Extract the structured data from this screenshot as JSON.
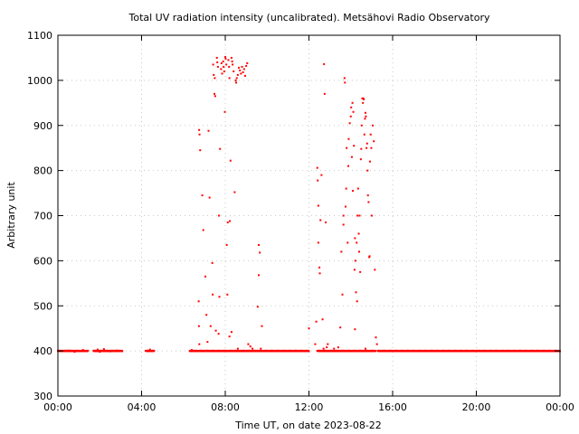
{
  "chart_data": {
    "type": "scatter",
    "title": "Total UV radiation intensity (uncalibrated). Metsähovi Radio Observatory",
    "xlabel": "Time UT, on date 2023-08-22",
    "ylabel": "Arbitrary unit",
    "x_unit": "hours UT",
    "xlim": [
      0,
      24
    ],
    "ylim": [
      300,
      1100
    ],
    "x_ticks": [
      0,
      4,
      8,
      12,
      16,
      20,
      24
    ],
    "x_tick_labels": [
      "00:00",
      "04:00",
      "08:00",
      "12:00",
      "16:00",
      "20:00",
      "00:00"
    ],
    "y_ticks": [
      300,
      400,
      500,
      600,
      700,
      800,
      900,
      1000,
      1100
    ],
    "y_tick_labels": [
      "300",
      "400",
      "500",
      "600",
      "700",
      "800",
      "900",
      "1000",
      "1100"
    ],
    "grid": true,
    "marker_color": "#ff0000",
    "series": [
      {
        "baseline": {
          "value": 400,
          "segments": [
            [
              0.0,
              1.45
            ],
            [
              1.7,
              3.1
            ],
            [
              4.2,
              4.6
            ],
            [
              6.3,
              9.5
            ],
            [
              9.5,
              12.0
            ],
            [
              12.4,
              15.2
            ],
            [
              15.3,
              24.0
            ]
          ]
        },
        "points": [
          [
            0.5,
            401
          ],
          [
            0.8,
            398
          ],
          [
            1.2,
            402
          ],
          [
            1.9,
            403
          ],
          [
            2.0,
            398
          ],
          [
            2.2,
            404
          ],
          [
            2.5,
            399
          ],
          [
            2.8,
            401
          ],
          [
            4.4,
            403
          ],
          [
            6.4,
            402
          ],
          [
            6.75,
            890
          ],
          [
            6.77,
            880
          ],
          [
            6.8,
            845
          ],
          [
            6.73,
            510
          ],
          [
            6.74,
            455
          ],
          [
            6.76,
            415
          ],
          [
            6.9,
            745
          ],
          [
            6.95,
            668
          ],
          [
            7.05,
            565
          ],
          [
            7.1,
            480
          ],
          [
            7.15,
            420
          ],
          [
            7.2,
            888
          ],
          [
            7.25,
            740
          ],
          [
            7.3,
            455
          ],
          [
            7.35,
            400
          ],
          [
            7.38,
            595
          ],
          [
            7.4,
            525
          ],
          [
            7.42,
            1035
          ],
          [
            7.45,
            1012
          ],
          [
            7.48,
            970
          ],
          [
            7.5,
            1005
          ],
          [
            7.52,
            965
          ],
          [
            7.55,
            445
          ],
          [
            7.6,
            1050
          ],
          [
            7.62,
            1040
          ],
          [
            7.65,
            1030
          ],
          [
            7.68,
            438
          ],
          [
            7.7,
            700
          ],
          [
            7.72,
            520
          ],
          [
            7.75,
            848
          ],
          [
            7.8,
            1025
          ],
          [
            7.82,
            1038
          ],
          [
            7.85,
            1015
          ],
          [
            7.9,
            1042
          ],
          [
            7.92,
            1030
          ],
          [
            7.95,
            1020
          ],
          [
            7.98,
            930
          ],
          [
            8.0,
            1052
          ],
          [
            8.02,
            1048
          ],
          [
            8.05,
            1035
          ],
          [
            8.07,
            635
          ],
          [
            8.1,
            525
          ],
          [
            8.12,
            685
          ],
          [
            8.15,
            1045
          ],
          [
            8.18,
            1030
          ],
          [
            8.2,
            1005
          ],
          [
            8.22,
            688
          ],
          [
            8.25,
            822
          ],
          [
            8.3,
            1050
          ],
          [
            8.33,
            1042
          ],
          [
            8.35,
            1035
          ],
          [
            8.4,
            1020
          ],
          [
            8.45,
            752
          ],
          [
            8.5,
            1000
          ],
          [
            8.52,
            995
          ],
          [
            8.55,
            1005
          ],
          [
            8.6,
            1012
          ],
          [
            8.65,
            1028
          ],
          [
            8.7,
            1022
          ],
          [
            8.75,
            1015
          ],
          [
            8.8,
            1030
          ],
          [
            8.85,
            1018
          ],
          [
            8.9,
            1025
          ],
          [
            8.95,
            1010
          ],
          [
            9.0,
            1032
          ],
          [
            9.05,
            1038
          ],
          [
            8.3,
            442
          ],
          [
            8.2,
            432
          ],
          [
            8.6,
            405
          ],
          [
            9.1,
            415
          ],
          [
            9.2,
            410
          ],
          [
            9.3,
            405
          ],
          [
            9.6,
            635
          ],
          [
            9.65,
            618
          ],
          [
            9.6,
            568
          ],
          [
            9.55,
            498
          ],
          [
            9.75,
            455
          ],
          [
            9.7,
            405
          ],
          [
            12.0,
            450
          ],
          [
            12.3,
            415
          ],
          [
            12.35,
            465
          ],
          [
            12.4,
            806
          ],
          [
            12.42,
            778
          ],
          [
            12.45,
            722
          ],
          [
            12.45,
            640
          ],
          [
            12.5,
            585
          ],
          [
            12.52,
            572
          ],
          [
            12.55,
            690
          ],
          [
            12.6,
            790
          ],
          [
            12.65,
            470
          ],
          [
            12.7,
            405
          ],
          [
            12.72,
            1036
          ],
          [
            12.75,
            970
          ],
          [
            12.8,
            685
          ],
          [
            12.85,
            408
          ],
          [
            12.9,
            415
          ],
          [
            13.5,
            452
          ],
          [
            13.55,
            620
          ],
          [
            13.6,
            525
          ],
          [
            13.65,
            680
          ],
          [
            13.65,
            700
          ],
          [
            13.7,
            1005
          ],
          [
            13.72,
            995
          ],
          [
            13.75,
            720
          ],
          [
            13.78,
            760
          ],
          [
            13.8,
            850
          ],
          [
            13.85,
            640
          ],
          [
            13.88,
            810
          ],
          [
            13.9,
            870
          ],
          [
            13.95,
            905
          ],
          [
            14.0,
            920
          ],
          [
            14.02,
            940
          ],
          [
            14.05,
            830
          ],
          [
            14.08,
            950
          ],
          [
            14.1,
            755
          ],
          [
            14.12,
            930
          ],
          [
            14.15,
            855
          ],
          [
            14.18,
            580
          ],
          [
            14.2,
            650
          ],
          [
            14.22,
            600
          ],
          [
            14.25,
            530
          ],
          [
            14.28,
            640
          ],
          [
            14.3,
            510
          ],
          [
            14.32,
            700
          ],
          [
            14.35,
            760
          ],
          [
            14.38,
            660
          ],
          [
            14.4,
            620
          ],
          [
            14.42,
            700
          ],
          [
            14.45,
            575
          ],
          [
            14.48,
            825
          ],
          [
            14.5,
            848
          ],
          [
            14.52,
            900
          ],
          [
            14.55,
            960
          ],
          [
            14.58,
            950
          ],
          [
            14.6,
            960
          ],
          [
            14.62,
            958
          ],
          [
            14.65,
            880
          ],
          [
            14.68,
            915
          ],
          [
            14.7,
            928
          ],
          [
            14.72,
            920
          ],
          [
            14.75,
            850
          ],
          [
            14.78,
            860
          ],
          [
            14.8,
            800
          ],
          [
            14.82,
            745
          ],
          [
            14.85,
            730
          ],
          [
            14.88,
            608
          ],
          [
            14.9,
            610
          ],
          [
            14.92,
            820
          ],
          [
            14.95,
            880
          ],
          [
            14.98,
            850
          ],
          [
            15.0,
            700
          ],
          [
            15.05,
            900
          ],
          [
            15.1,
            865
          ],
          [
            15.15,
            580
          ],
          [
            15.2,
            430
          ],
          [
            15.25,
            415
          ],
          [
            13.2,
            405
          ],
          [
            13.4,
            408
          ],
          [
            14.2,
            448
          ],
          [
            14.7,
            405
          ]
        ]
      }
    ]
  }
}
